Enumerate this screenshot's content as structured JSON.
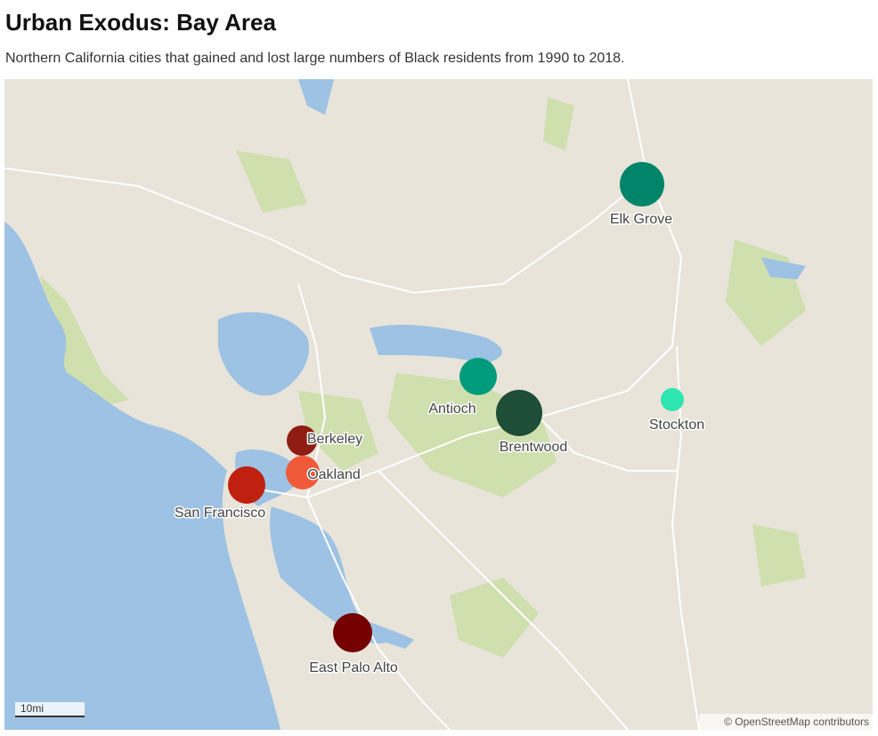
{
  "header": {
    "title": "Urban Exodus: Bay Area",
    "subtitle": "Northern California cities that gained and lost large numbers of Black residents from 1990 to 2018."
  },
  "map": {
    "markers": [
      {
        "label": "Elk Grove",
        "color": "#00856a"
      },
      {
        "label": "Antioch",
        "color": "#009b7d"
      },
      {
        "label": "Brentwood",
        "color": "#1e4d38"
      },
      {
        "label": "Stockton",
        "color": "#2ee6b0"
      },
      {
        "label": "Berkeley",
        "color": "#8f1d14"
      },
      {
        "label": "Oakland",
        "color": "#ef5a3b"
      },
      {
        "label": "San Francisco",
        "color": "#c0200f"
      },
      {
        "label": "East Palo Alto",
        "color": "#740000"
      }
    ],
    "scale": "10mi",
    "attribution": "© OpenStreetMap contributors"
  }
}
